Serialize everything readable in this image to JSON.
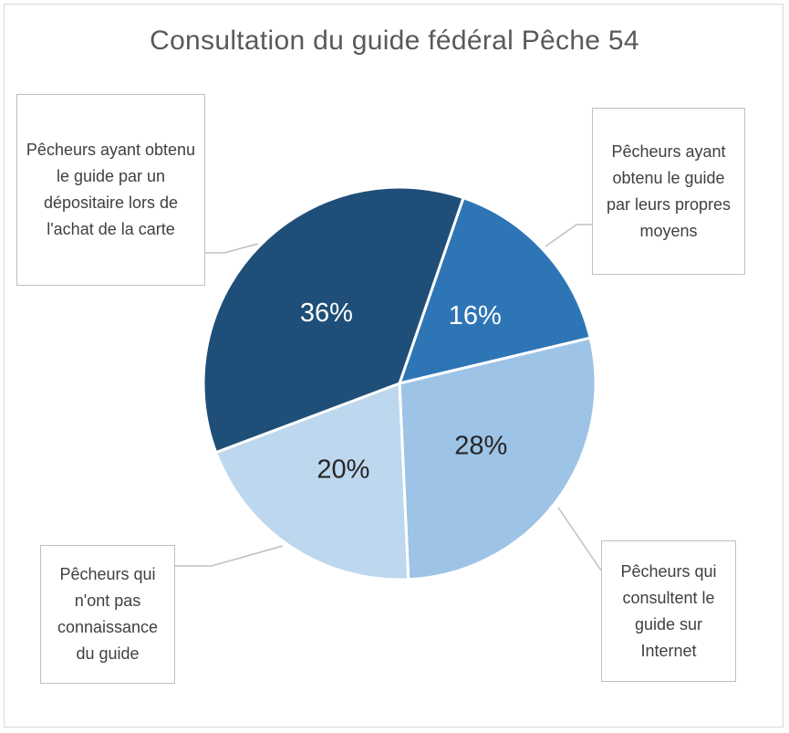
{
  "chart_data": {
    "type": "pie",
    "title": "Consultation du guide fédéral Pêche 54",
    "slices": [
      {
        "label": "Pêcheurs ayant obtenu le guide par leurs propres moyens",
        "value": 16,
        "value_label": "16%",
        "color": "#2e75b6",
        "label_color": "#ffffff"
      },
      {
        "label": "Pêcheurs qui consultent le guide sur Internet",
        "value": 28,
        "value_label": "28%",
        "color": "#9dc3e6",
        "label_color": "#262626"
      },
      {
        "label": "Pêcheurs qui n'ont pas connaissance du guide",
        "value": 20,
        "value_label": "20%",
        "color": "#bdd7ee",
        "label_color": "#262626"
      },
      {
        "label": "Pêcheurs ayant obtenu le guide par un dépositaire lors de l'achat de la carte",
        "value": 36,
        "value_label": "36%",
        "color": "#1f4e79",
        "label_color": "#ffffff"
      }
    ],
    "legend": "callouts"
  }
}
